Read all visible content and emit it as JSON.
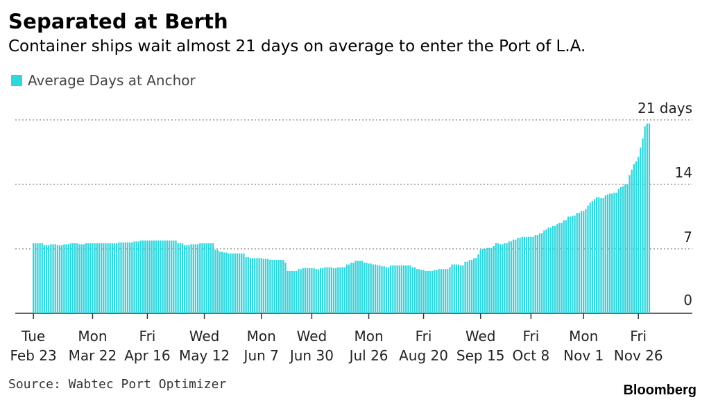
{
  "chart_data": {
    "type": "bar",
    "title": "Separated at Berth",
    "subtitle": "Container ships wait almost 21 days on average to enter the Port of L.A.",
    "legend": [
      {
        "name": "Average Days at Anchor",
        "color": "#2ed6de"
      }
    ],
    "legend_placement": "top-left",
    "source": "Source: Wabtec Port Optimizer",
    "brand": "Bloomberg",
    "ylim": [
      0,
      21
    ],
    "y_ticks": [
      {
        "value": 0,
        "label": "0"
      },
      {
        "value": 7,
        "label": "7"
      },
      {
        "value": 14,
        "label": "14"
      },
      {
        "value": 21,
        "label": "21 days"
      }
    ],
    "x_ticks": [
      {
        "index": 0,
        "day": "Tue",
        "date": "Feb 23"
      },
      {
        "index": 27,
        "day": "Mon",
        "date": "Mar 22"
      },
      {
        "index": 52,
        "day": "Fri",
        "date": "Apr 16"
      },
      {
        "index": 78,
        "day": "Wed",
        "date": "May 12"
      },
      {
        "index": 104,
        "day": "Mon",
        "date": "Jun 7"
      },
      {
        "index": 127,
        "day": "Wed",
        "date": "Jun 30"
      },
      {
        "index": 153,
        "day": "Mon",
        "date": "Jul 26"
      },
      {
        "index": 178,
        "day": "Fri",
        "date": "Aug 20"
      },
      {
        "index": 204,
        "day": "Wed",
        "date": "Sep 15"
      },
      {
        "index": 227,
        "day": "Fri",
        "date": "Oct 8"
      },
      {
        "index": 251,
        "day": "Mon",
        "date": "Nov 1"
      },
      {
        "index": 276,
        "day": "Fri",
        "date": "Nov 26"
      }
    ],
    "series": [
      {
        "name": "Average Days at Anchor",
        "color": "#2ed6de",
        "values": [
          7.6,
          7.6,
          7.6,
          7.6,
          7.6,
          7.4,
          7.4,
          7.4,
          7.5,
          7.5,
          7.5,
          7.4,
          7.4,
          7.4,
          7.5,
          7.5,
          7.5,
          7.6,
          7.6,
          7.6,
          7.6,
          7.5,
          7.5,
          7.5,
          7.6,
          7.6,
          7.6,
          7.6,
          7.6,
          7.6,
          7.6,
          7.6,
          7.6,
          7.6,
          7.6,
          7.6,
          7.6,
          7.6,
          7.6,
          7.7,
          7.7,
          7.7,
          7.7,
          7.7,
          7.7,
          7.7,
          7.8,
          7.8,
          7.8,
          7.9,
          7.9,
          7.9,
          7.9,
          7.9,
          7.9,
          7.9,
          7.9,
          7.9,
          7.9,
          7.9,
          7.9,
          7.9,
          7.9,
          7.9,
          7.9,
          7.9,
          7.6,
          7.6,
          7.6,
          7.4,
          7.4,
          7.4,
          7.5,
          7.5,
          7.5,
          7.5,
          7.6,
          7.6,
          7.6,
          7.6,
          7.6,
          7.6,
          7.6,
          6.9,
          6.9,
          6.7,
          6.7,
          6.6,
          6.6,
          6.5,
          6.5,
          6.5,
          6.5,
          6.5,
          6.5,
          6.5,
          6.5,
          6.1,
          6.1,
          6.0,
          6.0,
          6.0,
          6.0,
          6.0,
          6.0,
          5.9,
          5.9,
          5.9,
          5.8,
          5.8,
          5.8,
          5.8,
          5.8,
          5.8,
          5.8,
          5.5,
          4.6,
          4.6,
          4.6,
          4.6,
          4.6,
          4.8,
          4.8,
          4.9,
          4.9,
          4.9,
          4.9,
          4.9,
          4.9,
          4.8,
          4.8,
          4.9,
          4.9,
          5.0,
          5.0,
          5.0,
          5.0,
          4.9,
          4.9,
          5.0,
          5.0,
          5.0,
          5.0,
          5.3,
          5.3,
          5.5,
          5.5,
          5.7,
          5.7,
          5.7,
          5.7,
          5.5,
          5.5,
          5.4,
          5.4,
          5.3,
          5.3,
          5.2,
          5.2,
          5.1,
          5.1,
          5.0,
          5.0,
          5.2,
          5.2,
          5.2,
          5.2,
          5.2,
          5.2,
          5.2,
          5.2,
          5.2,
          5.2,
          5.0,
          5.0,
          4.8,
          4.8,
          4.7,
          4.7,
          4.6,
          4.6,
          4.6,
          4.6,
          4.7,
          4.7,
          4.8,
          4.8,
          4.8,
          4.8,
          4.8,
          5.0,
          5.3,
          5.3,
          5.3,
          5.3,
          5.2,
          5.2,
          5.6,
          5.6,
          5.8,
          5.8,
          6.0,
          6.0,
          6.4,
          6.9,
          7.0,
          7.0,
          7.1,
          7.1,
          7.1,
          7.3,
          7.6,
          7.6,
          7.5,
          7.5,
          7.6,
          7.6,
          7.8,
          7.8,
          8.0,
          8.0,
          8.2,
          8.2,
          8.3,
          8.3,
          8.3,
          8.3,
          8.3,
          8.3,
          8.5,
          8.5,
          8.7,
          8.7,
          9.0,
          9.1,
          9.3,
          9.3,
          9.5,
          9.5,
          9.7,
          9.8,
          9.8,
          10.1,
          10.1,
          10.5,
          10.5,
          10.6,
          10.6,
          10.9,
          10.9,
          11.1,
          11.1,
          11.3,
          11.7,
          12.0,
          12.2,
          12.4,
          12.6,
          12.6,
          12.5,
          12.5,
          12.8,
          12.9,
          13.0,
          13.0,
          13.1,
          13.1,
          13.5,
          13.7,
          13.8,
          14.0,
          14.0,
          15.0,
          15.6,
          16.2,
          16.5,
          17.0,
          18.0,
          19.0,
          20.3,
          20.6,
          20.6
        ]
      }
    ]
  }
}
